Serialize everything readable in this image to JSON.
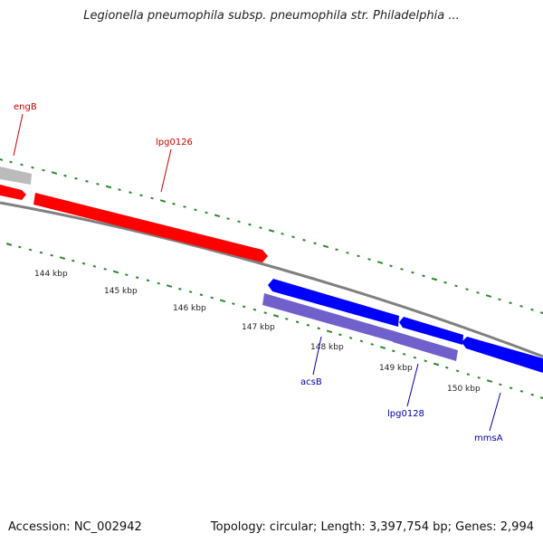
{
  "title": "Legionella pneumophila subsp. pneumophila str. Philadelphia ...",
  "footer": {
    "accession": "Accession: NC_002942",
    "stats": "Topology: circular; Length: 3,397,754 bp; Genes: 2,994"
  },
  "colors": {
    "forward_gene": "#ff0000",
    "reverse_gene": "#0000ff",
    "reverse_gene_light": "#7060cc",
    "partial_gene": "#bbbbbb",
    "backbone": "#808080",
    "tick": "#2a8a2a",
    "forward_label": "#cc0000",
    "reverse_label": "#0000aa"
  },
  "scale": {
    "ticks": [
      {
        "label": "144 kbp"
      },
      {
        "label": "145 kbp"
      },
      {
        "label": "146 kbp"
      },
      {
        "label": "147 kbp"
      },
      {
        "label": "148 kbp"
      },
      {
        "label": "149 kbp"
      },
      {
        "label": "150 kbp"
      }
    ]
  },
  "genes": [
    {
      "label": "engB",
      "strand": "forward"
    },
    {
      "label": "lpg0126",
      "strand": "forward"
    },
    {
      "label": "acsB",
      "strand": "reverse"
    },
    {
      "label": "lpg0128",
      "strand": "reverse"
    },
    {
      "label": "mmsA",
      "strand": "reverse"
    }
  ]
}
